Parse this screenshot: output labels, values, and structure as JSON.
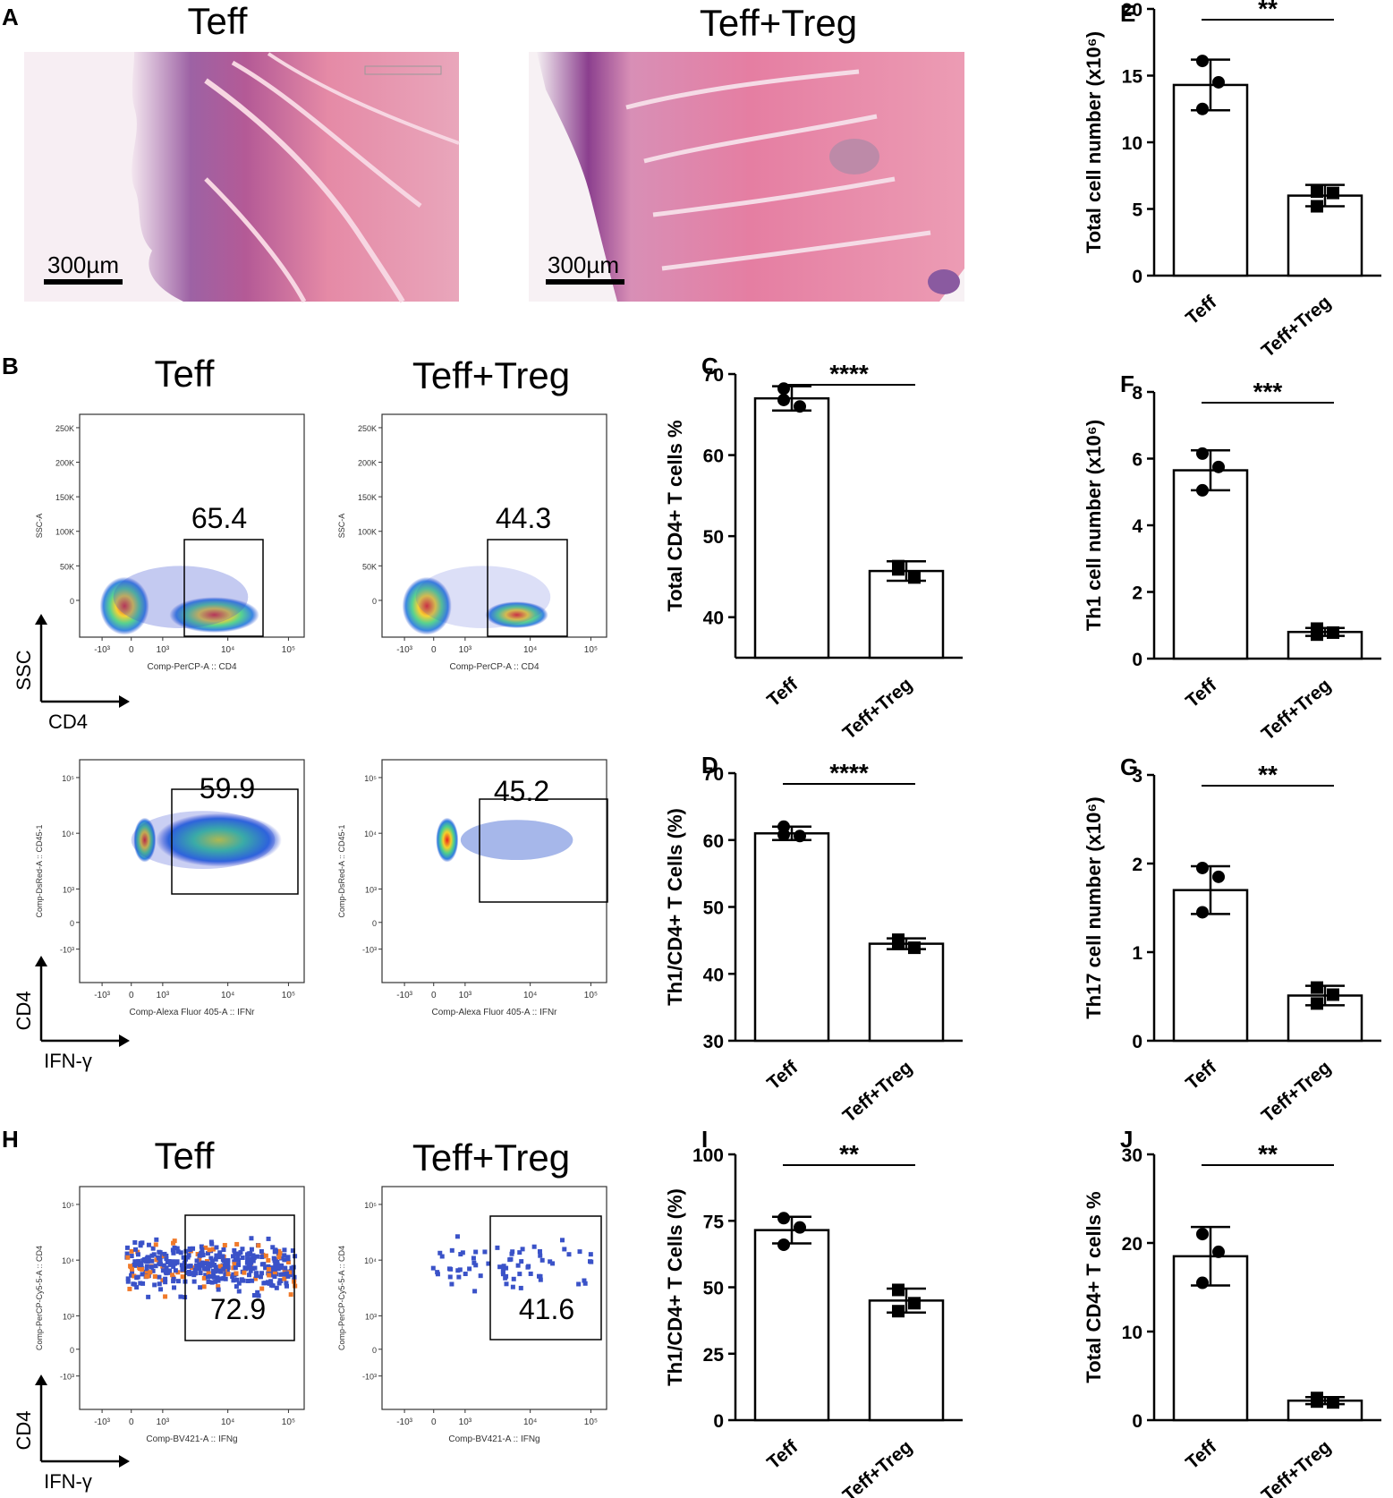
{
  "panels": {
    "histology": {
      "letter": "A",
      "left": {
        "title": "Teff",
        "scale": "300µm"
      },
      "right": {
        "title": "Teff+Treg",
        "scale": "300µm"
      }
    },
    "flow_B": {
      "letter": "B",
      "titles": [
        "Teff",
        "Teff+Treg"
      ],
      "top": {
        "yname": "SSC-A",
        "ytick_labels": [
          "250K",
          "200K",
          "150K",
          "100K",
          "50K",
          "0"
        ],
        "xtick_labels": [
          "-10³",
          "0",
          "10³",
          "10⁴",
          "10⁵"
        ],
        "xname": "Comp-PerCP-A :: CD4",
        "gate_values": [
          "65.4",
          "44.3"
        ],
        "axis_y": "SSC",
        "axis_x": "CD4"
      },
      "bottom": {
        "yname": "Comp-DsRed-A :: CD45-1",
        "ytick_labels": [
          "10⁵",
          "10⁴",
          "10³",
          "0",
          "-10³"
        ],
        "xtick_labels": [
          "-10³",
          "0",
          "10³",
          "10⁴",
          "10⁵"
        ],
        "xname": "Comp-Alexa Fluor 405-A :: IFNr",
        "gate_values": [
          "59.9",
          "45.2"
        ],
        "axis_y": "CD4",
        "axis_x": "IFN-γ"
      }
    },
    "flow_H": {
      "letter": "H",
      "titles": [
        "Teff",
        "Teff+Treg"
      ],
      "yname": "Comp-PerCP-Cy5-5-A :: CD4",
      "ytick_labels": [
        "10⁵",
        "10⁴",
        "10³",
        "0",
        "-10³"
      ],
      "xtick_labels": [
        "-10³",
        "0",
        "10³",
        "10⁴",
        "10⁵"
      ],
      "xname": "Comp-BV421-A :: IFNg",
      "gate_values": [
        "72.9",
        "41.6"
      ],
      "axis_y": "CD4",
      "axis_x": "IFN-γ"
    }
  },
  "chart_data": [
    {
      "id": "C",
      "type": "bar",
      "categories": [
        "Teff",
        "Teff+Treg"
      ],
      "ylabel": "Total CD4+ T cells %",
      "ylim": [
        35,
        70
      ],
      "yticks": [
        40,
        50,
        60,
        70
      ],
      "means": [
        67.0,
        45.7
      ],
      "errors": [
        1.5,
        1.2
      ],
      "points": [
        [
          68.2,
          66.0,
          66.8
        ],
        [
          46.3,
          44.9,
          45.9
        ]
      ],
      "significance": "****"
    },
    {
      "id": "D",
      "type": "bar",
      "categories": [
        "Teff",
        "Teff+Treg"
      ],
      "ylabel": "Th1/CD4+ T Cells (%)",
      "ylim": [
        30,
        70
      ],
      "yticks": [
        30,
        40,
        50,
        60,
        70
      ],
      "means": [
        61.0,
        44.5
      ],
      "errors": [
        1.0,
        0.8
      ],
      "points": [
        [
          62.0,
          60.6,
          60.8
        ],
        [
          45.1,
          43.9,
          44.5
        ]
      ],
      "significance": "****"
    },
    {
      "id": "E",
      "type": "bar",
      "categories": [
        "Teff",
        "Teff+Treg"
      ],
      "ylabel": "Total cell number (x10⁶)",
      "ylim": [
        0,
        20
      ],
      "yticks": [
        0,
        5,
        10,
        15,
        20
      ],
      "means": [
        14.3,
        6.0
      ],
      "errors": [
        1.9,
        0.8
      ],
      "points": [
        [
          16.1,
          14.5,
          12.5
        ],
        [
          6.3,
          6.2,
          5.2
        ]
      ],
      "significance": "**"
    },
    {
      "id": "F",
      "type": "bar",
      "categories": [
        "Teff",
        "Teff+Treg"
      ],
      "ylabel": "Th1 cell number (x10⁶)",
      "ylim": [
        0,
        8
      ],
      "yticks": [
        0,
        2,
        4,
        6,
        8
      ],
      "means": [
        5.65,
        0.8
      ],
      "errors": [
        0.6,
        0.12
      ],
      "points": [
        [
          6.15,
          5.75,
          5.05
        ],
        [
          0.9,
          0.78,
          0.72
        ]
      ],
      "significance": "***"
    },
    {
      "id": "G",
      "type": "bar",
      "categories": [
        "Teff",
        "Teff+Treg"
      ],
      "ylabel": "Th17 cell number (x10⁶)",
      "ylim": [
        0,
        3
      ],
      "yticks": [
        0,
        1,
        2,
        3
      ],
      "means": [
        1.7,
        0.51
      ],
      "errors": [
        0.27,
        0.11
      ],
      "points": [
        [
          1.95,
          1.85,
          1.45
        ],
        [
          0.6,
          0.52,
          0.42
        ]
      ],
      "significance": "**"
    },
    {
      "id": "I",
      "type": "bar",
      "categories": [
        "Teff",
        "Teff+Treg"
      ],
      "ylabel": "Th1/CD4+ T Cells (%)",
      "ylim": [
        0,
        100
      ],
      "yticks": [
        0,
        25,
        50,
        75,
        100
      ],
      "means": [
        71.5,
        45.0
      ],
      "errors": [
        5.0,
        4.5
      ],
      "points": [
        [
          76.0,
          72.5,
          66.0
        ],
        [
          49.0,
          44.0,
          41.0
        ]
      ],
      "significance": "**"
    },
    {
      "id": "J",
      "type": "bar",
      "categories": [
        "Teff",
        "Teff+Treg"
      ],
      "ylabel": "Total CD4+ T cells %",
      "ylim": [
        0,
        30
      ],
      "yticks": [
        0,
        10,
        20,
        30
      ],
      "means": [
        18.5,
        2.2
      ],
      "errors": [
        3.3,
        0.4
      ],
      "points": [
        [
          21.0,
          19.0,
          15.5
        ],
        [
          2.5,
          2.0,
          2.1
        ]
      ],
      "significance": "**"
    }
  ]
}
